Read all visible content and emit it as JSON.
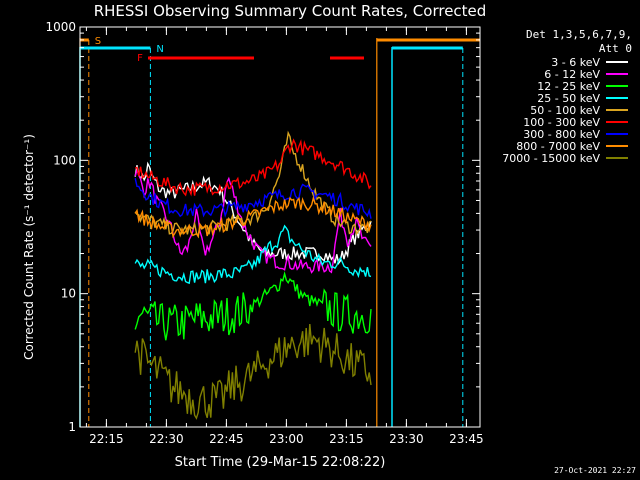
{
  "title": "RHESSI Observing Summary Count Rates, Corrected",
  "xlabel": "Start Time (29-Mar-15 22:08:22)",
  "ylabel": "Corrected Count Rate (s⁻¹ detector⁻¹)",
  "timestamp": "27-Oct-2021 22:27",
  "detector_info": {
    "line1": "Det 1,3,5,6,7,9,",
    "line2": "Att 0"
  },
  "flag_labels": {
    "saa": "S",
    "night": "N",
    "flare": "F"
  },
  "colors": {
    "background": "#000000",
    "axes": "#ffffff",
    "saa": "#ff8c00",
    "night": "#00e5ff",
    "flare": "#ff0000"
  },
  "chart_data": {
    "type": "line",
    "x_unit": "minutes since start (22:08:22)",
    "xlim": [
      0,
      100
    ],
    "ylim": [
      1,
      1000
    ],
    "yscale": "log",
    "y_ticks": [
      "1",
      "10",
      "100",
      "1000"
    ],
    "x_ticks": [
      {
        "label": "22:15",
        "t": 6.6
      },
      {
        "label": "22:30",
        "t": 21.6
      },
      {
        "label": "22:45",
        "t": 36.6
      },
      {
        "label": "23:00",
        "t": 51.6
      },
      {
        "label": "23:15",
        "t": 66.6
      },
      {
        "label": "23:30",
        "t": 81.6
      },
      {
        "label": "23:45",
        "t": 96.6
      }
    ],
    "flags": {
      "saa": [
        {
          "start": 0,
          "end": 2.2,
          "label": "S"
        },
        {
          "start": 74.2,
          "end": 100
        }
      ],
      "night": [
        {
          "start": 0,
          "end": 17.6,
          "label": "N"
        },
        {
          "start": 78.0,
          "end": 95.7
        }
      ],
      "flare": [
        {
          "start": 17.0,
          "end": 43.5,
          "label": "F"
        },
        {
          "start": 62.5,
          "end": 71.0
        }
      ]
    },
    "data_start": 13.8,
    "data_end": 73.0,
    "series": [
      {
        "name": "3 - 6 keV",
        "color": "#000000",
        "x": [
          13.8,
          15,
          16,
          17,
          18,
          20,
          23,
          26,
          29,
          32,
          35,
          37,
          40,
          43,
          46,
          49,
          52,
          55,
          58,
          61,
          63,
          65,
          67,
          69,
          71,
          73
        ],
        "y": [
          85,
          80,
          70,
          90,
          75,
          60,
          56,
          60,
          64,
          68,
          60,
          48,
          34,
          24,
          20,
          20,
          20,
          20,
          20,
          20,
          18,
          18,
          22,
          27,
          31,
          35
        ]
      },
      {
        "name": "6 - 12 keV",
        "color": "#ff00ff",
        "x": [
          13.8,
          16,
          17.5,
          19,
          21,
          23,
          25,
          27,
          29,
          31,
          33,
          35,
          37,
          39,
          41,
          43,
          45,
          48,
          50,
          52,
          55,
          58,
          61,
          63,
          65,
          67,
          69,
          71,
          73
        ],
        "y": [
          85,
          60,
          70,
          50,
          40,
          30,
          20,
          22,
          40,
          20,
          25,
          35,
          75,
          50,
          32,
          25,
          20,
          18,
          17,
          17,
          16,
          16,
          16,
          16,
          40,
          25,
          35,
          24,
          22
        ]
      },
      {
        "name": "12 - 25 keV",
        "color": "#00ff00",
        "x": [
          13.8,
          15,
          17,
          20,
          23,
          26,
          29,
          32,
          35,
          38,
          41,
          44,
          47,
          50,
          51,
          53,
          55,
          57,
          59,
          61,
          63,
          66,
          69,
          71,
          73
        ],
        "y": [
          6,
          7,
          6.5,
          6,
          6,
          6,
          6.5,
          6.5,
          6.8,
          7,
          7.5,
          8.5,
          10,
          12,
          14,
          12,
          10,
          9,
          8.5,
          8,
          7.5,
          7,
          7,
          7,
          7
        ]
      },
      {
        "name": "25 - 50 keV",
        "color": "#00ffff",
        "x": [
          13.8,
          15,
          17,
          20,
          23,
          26,
          29,
          32,
          35,
          38,
          41,
          44,
          47,
          50,
          51,
          53,
          55,
          57,
          59,
          61,
          63,
          65,
          67,
          69,
          71,
          73
        ],
        "y": [
          17,
          16,
          16,
          15,
          14,
          13.5,
          13.5,
          13.5,
          14,
          14,
          15,
          17,
          22,
          26,
          30,
          25,
          22,
          20,
          18,
          17,
          17,
          17,
          16,
          15,
          15,
          14
        ]
      },
      {
        "name": "50 - 100 keV",
        "color": "#daa520",
        "x": [
          13.8,
          15,
          17,
          20,
          23,
          26,
          29,
          32,
          35,
          38,
          41,
          44,
          47,
          50,
          52,
          53,
          55,
          57,
          59,
          61,
          63,
          65,
          67,
          69,
          71,
          73
        ],
        "y": [
          45,
          38,
          36,
          33,
          31,
          30,
          30,
          31,
          32,
          34,
          36,
          38,
          46,
          80,
          150,
          120,
          95,
          70,
          55,
          45,
          38,
          34,
          32,
          31,
          31,
          31
        ]
      },
      {
        "name": "100 - 300 keV",
        "color": "#ff0000",
        "x": [
          13.8,
          15,
          17,
          20,
          23,
          26,
          29,
          32,
          35,
          38,
          41,
          44,
          47,
          50,
          52,
          53,
          55,
          58,
          61,
          64,
          67,
          70,
          73
        ],
        "y": [
          85,
          82,
          76,
          70,
          64,
          61,
          61,
          62,
          64,
          66,
          68,
          72,
          80,
          95,
          125,
          135,
          125,
          115,
          105,
          95,
          85,
          75,
          65
        ]
      },
      {
        "name": "300 - 800 keV",
        "color": "#0000ff",
        "x": [
          13.8,
          15,
          17,
          20,
          23,
          26,
          29,
          32,
          35,
          38,
          41,
          44,
          47,
          50,
          53,
          56,
          59,
          62,
          65,
          68,
          71,
          73
        ],
        "y": [
          70,
          63,
          55,
          48,
          44,
          42,
          42,
          42,
          43,
          44,
          46,
          49,
          52,
          55,
          58,
          59,
          57,
          54,
          50,
          45,
          42,
          40
        ]
      },
      {
        "name": "800 - 7000 keV",
        "color": "#ff8c00",
        "x": [
          13.8,
          15,
          17,
          20,
          23,
          26,
          29,
          32,
          35,
          38,
          41,
          44,
          47,
          50,
          53,
          56,
          59,
          62,
          65,
          68,
          71,
          73
        ],
        "y": [
          42,
          38,
          35,
          32,
          30,
          30,
          30,
          30,
          32,
          34,
          36,
          39,
          43,
          46,
          48,
          48,
          46,
          43,
          40,
          36,
          34,
          33
        ]
      },
      {
        "name": "7000 - 15000 keV",
        "color": "#808000",
        "x": [
          13.8,
          15,
          17,
          20,
          23,
          26,
          29,
          32,
          35,
          38,
          41,
          44,
          47,
          50,
          53,
          56,
          59,
          62,
          65,
          68,
          71,
          73
        ],
        "y": [
          4,
          3.5,
          3,
          2.5,
          2,
          1.8,
          1.6,
          1.6,
          1.6,
          2,
          2.2,
          2.6,
          3.2,
          3.6,
          4.2,
          4.4,
          4.5,
          4,
          3.5,
          3,
          2.7,
          2.5
        ]
      }
    ]
  }
}
